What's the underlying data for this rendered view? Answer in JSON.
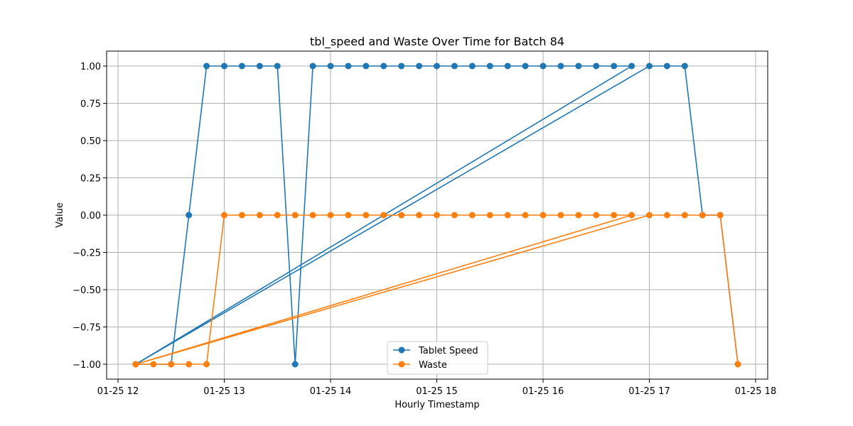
{
  "chart_data": {
    "type": "line",
    "title": "tbl_speed and Waste Over Time for Batch 84",
    "xlabel": "Hourly Timestamp",
    "ylabel": "Value",
    "xlim": [
      "01-25 12:00",
      "01-25 18:00"
    ],
    "ylim": [
      -1.1,
      1.1
    ],
    "x_ticks": [
      "01-25 12",
      "01-25 13",
      "01-25 14",
      "01-25 15",
      "01-25 16",
      "01-25 17",
      "01-25 18"
    ],
    "y_ticks": [
      "1.00",
      "0.75",
      "0.50",
      "0.25",
      "0.00",
      "−0.25",
      "−0.50",
      "−0.75",
      "−1.00"
    ],
    "y_tick_values": [
      1.0,
      0.75,
      0.5,
      0.25,
      0.0,
      -0.25,
      -0.5,
      -0.75,
      -1.0
    ],
    "grid": true,
    "legend_placement": "lower-center",
    "series": [
      {
        "name": "Tablet Speed",
        "color": "#1f77b4",
        "points": [
          [
            "01-25 12:10",
            -1
          ],
          [
            "01-25 12:30",
            -1
          ],
          [
            "01-25 12:40",
            0
          ],
          [
            "01-25 12:50",
            1
          ],
          [
            "01-25 13:00",
            1
          ],
          [
            "01-25 13:10",
            1
          ],
          [
            "01-25 13:20",
            1
          ],
          [
            "01-25 13:30",
            1
          ],
          [
            "01-25 13:40",
            -1
          ],
          [
            "01-25 13:50",
            1
          ],
          [
            "01-25 14:00",
            1
          ],
          [
            "01-25 14:10",
            1
          ],
          [
            "01-25 14:20",
            1
          ],
          [
            "01-25 14:30",
            1
          ],
          [
            "01-25 14:40",
            1
          ],
          [
            "01-25 14:50",
            1
          ],
          [
            "01-25 15:00",
            1
          ],
          [
            "01-25 15:10",
            1
          ],
          [
            "01-25 15:20",
            1
          ],
          [
            "01-25 15:30",
            1
          ],
          [
            "01-25 15:40",
            1
          ],
          [
            "01-25 15:50",
            1
          ],
          [
            "01-25 16:00",
            1
          ],
          [
            "01-25 16:10",
            1
          ],
          [
            "01-25 16:20",
            1
          ],
          [
            "01-25 16:30",
            1
          ],
          [
            "01-25 16:40",
            1
          ],
          [
            "01-25 16:50",
            1
          ],
          [
            "01-25 12:10",
            -1
          ],
          [
            "01-25 17:00",
            1
          ],
          [
            "01-25 17:10",
            1
          ],
          [
            "01-25 17:20",
            1
          ],
          [
            "01-25 17:30",
            0
          ],
          [
            "01-25 17:40",
            0
          ],
          [
            "01-25 17:50",
            -1
          ]
        ]
      },
      {
        "name": "Waste",
        "color": "#ff7f0e",
        "points": [
          [
            "01-25 12:10",
            -1
          ],
          [
            "01-25 12:20",
            -1
          ],
          [
            "01-25 12:30",
            -1
          ],
          [
            "01-25 12:40",
            -1
          ],
          [
            "01-25 12:50",
            -1
          ],
          [
            "01-25 13:00",
            0
          ],
          [
            "01-25 13:10",
            0
          ],
          [
            "01-25 13:20",
            0
          ],
          [
            "01-25 13:30",
            0
          ],
          [
            "01-25 13:40",
            0
          ],
          [
            "01-25 13:50",
            0
          ],
          [
            "01-25 14:00",
            0
          ],
          [
            "01-25 14:10",
            0
          ],
          [
            "01-25 14:20",
            0
          ],
          [
            "01-25 14:30",
            0
          ],
          [
            "01-25 14:40",
            0
          ],
          [
            "01-25 14:50",
            0
          ],
          [
            "01-25 15:00",
            0
          ],
          [
            "01-25 15:10",
            0
          ],
          [
            "01-25 15:20",
            0
          ],
          [
            "01-25 15:30",
            0
          ],
          [
            "01-25 15:40",
            0
          ],
          [
            "01-25 15:50",
            0
          ],
          [
            "01-25 16:00",
            0
          ],
          [
            "01-25 16:10",
            0
          ],
          [
            "01-25 16:20",
            0
          ],
          [
            "01-25 16:30",
            0
          ],
          [
            "01-25 16:40",
            0
          ],
          [
            "01-25 16:50",
            0
          ],
          [
            "01-25 12:10",
            -1
          ],
          [
            "01-25 17:00",
            0
          ],
          [
            "01-25 17:10",
            0
          ],
          [
            "01-25 17:20",
            0
          ],
          [
            "01-25 17:30",
            0
          ],
          [
            "01-25 17:40",
            0
          ],
          [
            "01-25 17:50",
            -1
          ]
        ]
      }
    ]
  }
}
